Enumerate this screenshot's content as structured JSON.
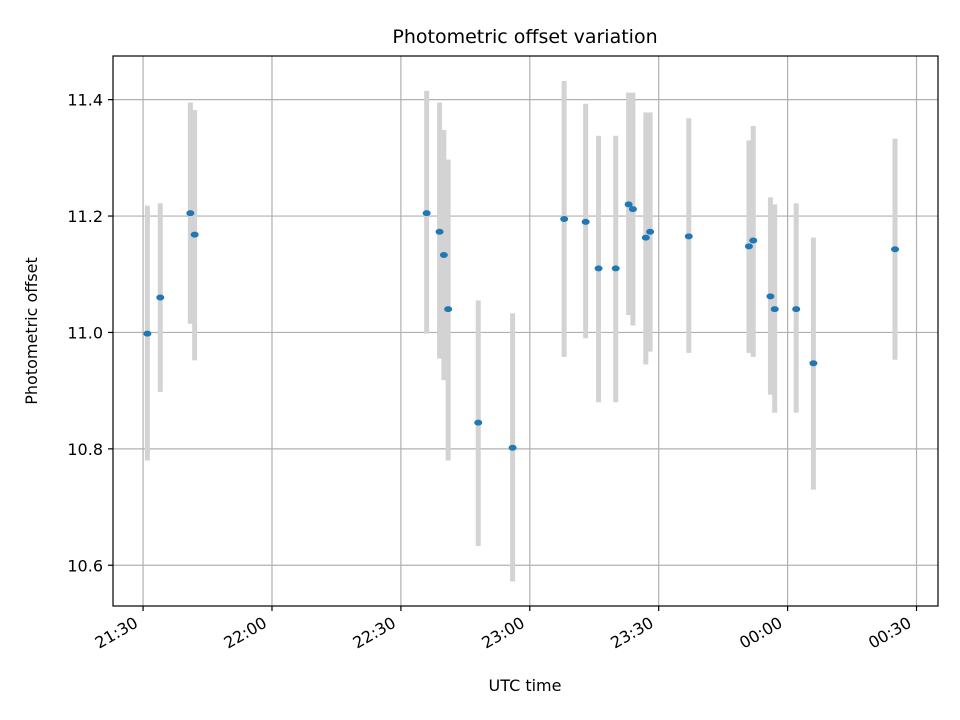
{
  "chart_data": {
    "type": "scatter",
    "title": "Photometric offset variation",
    "xlabel": "UTC time",
    "ylabel": "Photometric offset",
    "xlim": [
      "21:23",
      "00:35"
    ],
    "ylim": [
      10.53,
      11.475
    ],
    "grid": true,
    "x_ticks": [
      "21:30",
      "22:00",
      "22:30",
      "23:00",
      "23:30",
      "00:00",
      "00:30"
    ],
    "y_ticks": [
      "10.6",
      "10.8",
      "11.0",
      "11.2",
      "11.4"
    ],
    "marker_color": "#1f77b4",
    "errorbar_color": "#d3d3d3",
    "points": [
      {
        "t": "21:31",
        "y": 10.998,
        "ylo": 10.78,
        "yhi": 11.218
      },
      {
        "t": "21:34",
        "y": 11.06,
        "ylo": 10.898,
        "yhi": 11.222
      },
      {
        "t": "21:41",
        "y": 11.205,
        "ylo": 11.015,
        "yhi": 11.395
      },
      {
        "t": "21:42",
        "y": 11.168,
        "ylo": 10.952,
        "yhi": 11.382
      },
      {
        "t": "22:36",
        "y": 11.205,
        "ylo": 10.998,
        "yhi": 11.415
      },
      {
        "t": "22:39",
        "y": 11.173,
        "ylo": 10.955,
        "yhi": 11.395
      },
      {
        "t": "22:40",
        "y": 11.133,
        "ylo": 10.918,
        "yhi": 11.348
      },
      {
        "t": "22:41",
        "y": 11.04,
        "ylo": 10.78,
        "yhi": 11.297
      },
      {
        "t": "22:48",
        "y": 10.845,
        "ylo": 10.633,
        "yhi": 11.055
      },
      {
        "t": "22:56",
        "y": 10.802,
        "ylo": 10.572,
        "yhi": 11.033
      },
      {
        "t": "23:08",
        "y": 11.195,
        "ylo": 10.958,
        "yhi": 11.432
      },
      {
        "t": "23:13",
        "y": 11.19,
        "ylo": 10.99,
        "yhi": 11.393
      },
      {
        "t": "23:16",
        "y": 11.11,
        "ylo": 10.88,
        "yhi": 11.338
      },
      {
        "t": "23:20",
        "y": 11.11,
        "ylo": 10.88,
        "yhi": 11.338
      },
      {
        "t": "23:23",
        "y": 11.22,
        "ylo": 11.03,
        "yhi": 11.412
      },
      {
        "t": "23:24",
        "y": 11.212,
        "ylo": 11.012,
        "yhi": 11.412
      },
      {
        "t": "23:27",
        "y": 11.163,
        "ylo": 10.945,
        "yhi": 11.378
      },
      {
        "t": "23:28",
        "y": 11.173,
        "ylo": 10.967,
        "yhi": 11.378
      },
      {
        "t": "23:37",
        "y": 11.165,
        "ylo": 10.965,
        "yhi": 11.368
      },
      {
        "t": "23:51",
        "y": 11.148,
        "ylo": 10.965,
        "yhi": 11.33
      },
      {
        "t": "23:52",
        "y": 11.158,
        "ylo": 10.958,
        "yhi": 11.355
      },
      {
        "t": "23:56",
        "y": 11.062,
        "ylo": 10.893,
        "yhi": 11.232
      },
      {
        "t": "23:57",
        "y": 11.04,
        "ylo": 10.862,
        "yhi": 11.22
      },
      {
        "t": "00:02",
        "y": 11.04,
        "ylo": 10.862,
        "yhi": 11.222
      },
      {
        "t": "00:06",
        "y": 10.947,
        "ylo": 10.73,
        "yhi": 11.163
      },
      {
        "t": "00:25",
        "y": 11.143,
        "ylo": 10.953,
        "yhi": 11.333
      }
    ]
  }
}
